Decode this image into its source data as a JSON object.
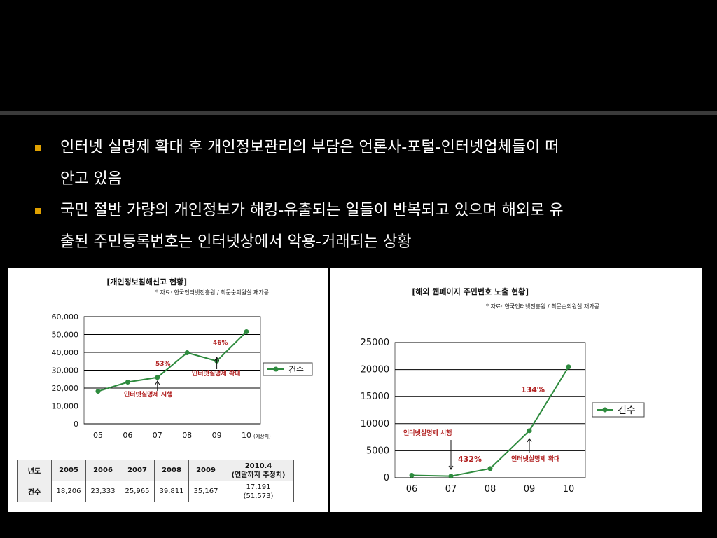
{
  "bullets": [
    {
      "line1": "인터넷 실명제 확대 후 개인정보관리의 부담은 언론사-포털-인터넷업체들이 떠",
      "line2": "안고 있음"
    },
    {
      "line1": "국민 절반 가량의 개인정보가 해킹-유출되는 일들이 반복되고 있으며 해외로 유",
      "line2": "출된 주민등록번호는 인터넷상에서 악용-거래되는 상황"
    }
  ],
  "colors": {
    "line": "#2e8b3e",
    "annotation": "#b22222",
    "grid": "#000000",
    "bullet": "#e0a100"
  },
  "chart_data": [
    {
      "type": "line",
      "title": "[개인정보침해신고 현황]",
      "source": "* 자료: 한국인터넷진흥원 / 최문순의원실 재가공",
      "categories": [
        "05",
        "06",
        "07",
        "08",
        "09",
        "10"
      ],
      "x_suffix": "(예상치)",
      "series": [
        {
          "name": "건수",
          "values": [
            18206,
            23333,
            25965,
            39811,
            35167,
            51573
          ]
        }
      ],
      "ylim": [
        0,
        60000
      ],
      "yticks": [
        "0",
        "10,000",
        "20,000",
        "30,000",
        "40,000",
        "50,000",
        "60,000"
      ],
      "grid": true,
      "legend": "right",
      "annotations": [
        {
          "text": "53%",
          "at": 2
        },
        {
          "text": "46%",
          "at": 4
        },
        {
          "text": "인터넷실명제 시행",
          "at": 2
        },
        {
          "text": "인터넷실명제 확대",
          "at": 4
        }
      ],
      "table": {
        "header": [
          "년도",
          "2005",
          "2006",
          "2007",
          "2008",
          "2009",
          "2010.4\n(연말까지 추정치)"
        ],
        "row": [
          "건수",
          "18,206",
          "23,333",
          "25,965",
          "39,811",
          "35,167",
          "17,191\n(51,573)"
        ]
      }
    },
    {
      "type": "line",
      "title": "[해외 웹페이지 주민번호 노출 현황]",
      "source": "* 자료: 한국인터넷진흥원 / 최문순의원실 재가공",
      "categories": [
        "06",
        "07",
        "08",
        "09",
        "10"
      ],
      "series": [
        {
          "name": "건수",
          "values": [
            450,
            300,
            1700,
            8700,
            20500
          ]
        }
      ],
      "ylim": [
        0,
        25000
      ],
      "yticks": [
        "0",
        "5000",
        "10000",
        "15000",
        "20000",
        "25000"
      ],
      "grid": true,
      "legend": "right",
      "annotations": [
        {
          "text": "432%",
          "at": 1
        },
        {
          "text": "134%",
          "at": 3
        },
        {
          "text": "인터넷실명제 시행",
          "at": 1
        },
        {
          "text": "인터넷실명제 확대",
          "at": 3
        }
      ]
    }
  ]
}
